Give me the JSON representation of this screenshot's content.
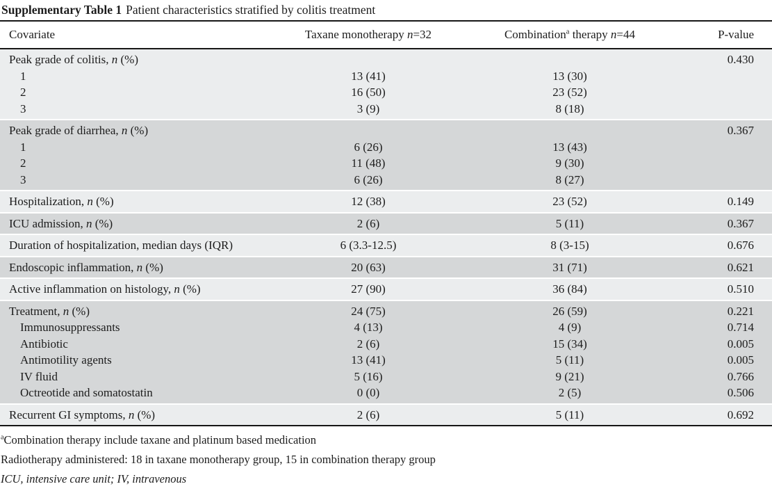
{
  "title": {
    "label": "Supplementary Table 1",
    "caption": "Patient characteristics stratified by colitis treatment"
  },
  "colors": {
    "band_light": "#ebedee",
    "band_dark": "#d5d7d8",
    "rule": "#161616",
    "text": "#1c1c1c"
  },
  "header": {
    "covariate": "Covariate",
    "taxane_pre": "Taxane monotherapy ",
    "n_italic": "n",
    "taxane_post": "=32",
    "combination_pre": "Combination",
    "combination_sup": "a",
    "combination_mid": " therapy ",
    "combination_post": "=44",
    "pvalue": "P-value"
  },
  "table": {
    "sections": [
      {
        "shade": "light",
        "rows": [
          {
            "pre": "Peak grade of colitis, ",
            "n": "n",
            "post": " (%)",
            "indent": false,
            "taxane": "",
            "combination": "",
            "pvalue": "0.430"
          },
          {
            "pre": "1",
            "indent": true,
            "taxane": "13 (41)",
            "combination": "13 (30)",
            "pvalue": ""
          },
          {
            "pre": "2",
            "indent": true,
            "taxane": "16 (50)",
            "combination": "23 (52)",
            "pvalue": ""
          },
          {
            "pre": "3",
            "indent": true,
            "taxane": "3 (9)",
            "combination": "8 (18)",
            "pvalue": ""
          }
        ]
      },
      {
        "shade": "dark",
        "rows": [
          {
            "pre": "Peak grade of diarrhea, ",
            "n": "n",
            "post": " (%)",
            "indent": false,
            "taxane": "",
            "combination": "",
            "pvalue": "0.367"
          },
          {
            "pre": "1",
            "indent": true,
            "taxane": "6 (26)",
            "combination": "13 (43)",
            "pvalue": ""
          },
          {
            "pre": "2",
            "indent": true,
            "taxane": "11 (48)",
            "combination": "9 (30)",
            "pvalue": ""
          },
          {
            "pre": "3",
            "indent": true,
            "taxane": "6 (26)",
            "combination": "8 (27)",
            "pvalue": ""
          }
        ]
      },
      {
        "shade": "light",
        "rows": [
          {
            "pre": "Hospitalization, ",
            "n": "n",
            "post": " (%)",
            "indent": false,
            "taxane": "12 (38)",
            "combination": "23 (52)",
            "pvalue": "0.149"
          }
        ]
      },
      {
        "shade": "dark",
        "rows": [
          {
            "pre": "ICU admission, ",
            "n": "n",
            "post": " (%)",
            "indent": false,
            "taxane": "2 (6)",
            "combination": "5 (11)",
            "pvalue": "0.367"
          }
        ]
      },
      {
        "shade": "light",
        "rows": [
          {
            "pre": "Duration of hospitalization, median days (IQR)",
            "indent": false,
            "taxane": "6 (3.3-12.5)",
            "combination": "8 (3-15)",
            "pvalue": "0.676"
          }
        ]
      },
      {
        "shade": "dark",
        "rows": [
          {
            "pre": "Endoscopic inflammation, ",
            "n": "n",
            "post": " (%)",
            "indent": false,
            "taxane": "20 (63)",
            "combination": "31 (71)",
            "pvalue": "0.621"
          }
        ]
      },
      {
        "shade": "light",
        "rows": [
          {
            "pre": "Active inflammation on histology, ",
            "n": "n",
            "post": " (%)",
            "indent": false,
            "taxane": "27 (90)",
            "combination": "36 (84)",
            "pvalue": "0.510"
          }
        ]
      },
      {
        "shade": "dark",
        "rows": [
          {
            "pre": "Treatment, ",
            "n": "n",
            "post": " (%)",
            "indent": false,
            "taxane": "24 (75)",
            "combination": "26 (59)",
            "pvalue": "0.221"
          },
          {
            "pre": "Immunosuppressants",
            "indent": true,
            "taxane": "4 (13)",
            "combination": "4 (9)",
            "pvalue": "0.714"
          },
          {
            "pre": "Antibiotic",
            "indent": true,
            "taxane": "2 (6)",
            "combination": "15 (34)",
            "pvalue": "0.005"
          },
          {
            "pre": "Antimotility agents",
            "indent": true,
            "taxane": "13 (41)",
            "combination": "5 (11)",
            "pvalue": "0.005"
          },
          {
            "pre": "IV fluid",
            "indent": true,
            "taxane": "5 (16)",
            "combination": "9 (21)",
            "pvalue": "0.766"
          },
          {
            "pre": "Octreotide and somatostatin",
            "indent": true,
            "taxane": "0 (0)",
            "combination": "2 (5)",
            "pvalue": "0.506"
          }
        ]
      },
      {
        "shade": "light",
        "rows": [
          {
            "pre": "Recurrent GI symptoms, ",
            "n": "n",
            "post": " (%)",
            "indent": false,
            "taxane": "2 (6)",
            "combination": "5 (11)",
            "pvalue": "0.692"
          }
        ]
      }
    ]
  },
  "footnotes": [
    {
      "sup": "a",
      "text": "Combination therapy include taxane and platinum based medication",
      "italic": false
    },
    {
      "sup": "",
      "text": "Radiotherapy administered: 18 in taxane monotherapy group, 15 in combination therapy group",
      "italic": false
    },
    {
      "sup": "",
      "text": "ICU, intensive care unit; IV, intravenous",
      "italic": true
    }
  ]
}
